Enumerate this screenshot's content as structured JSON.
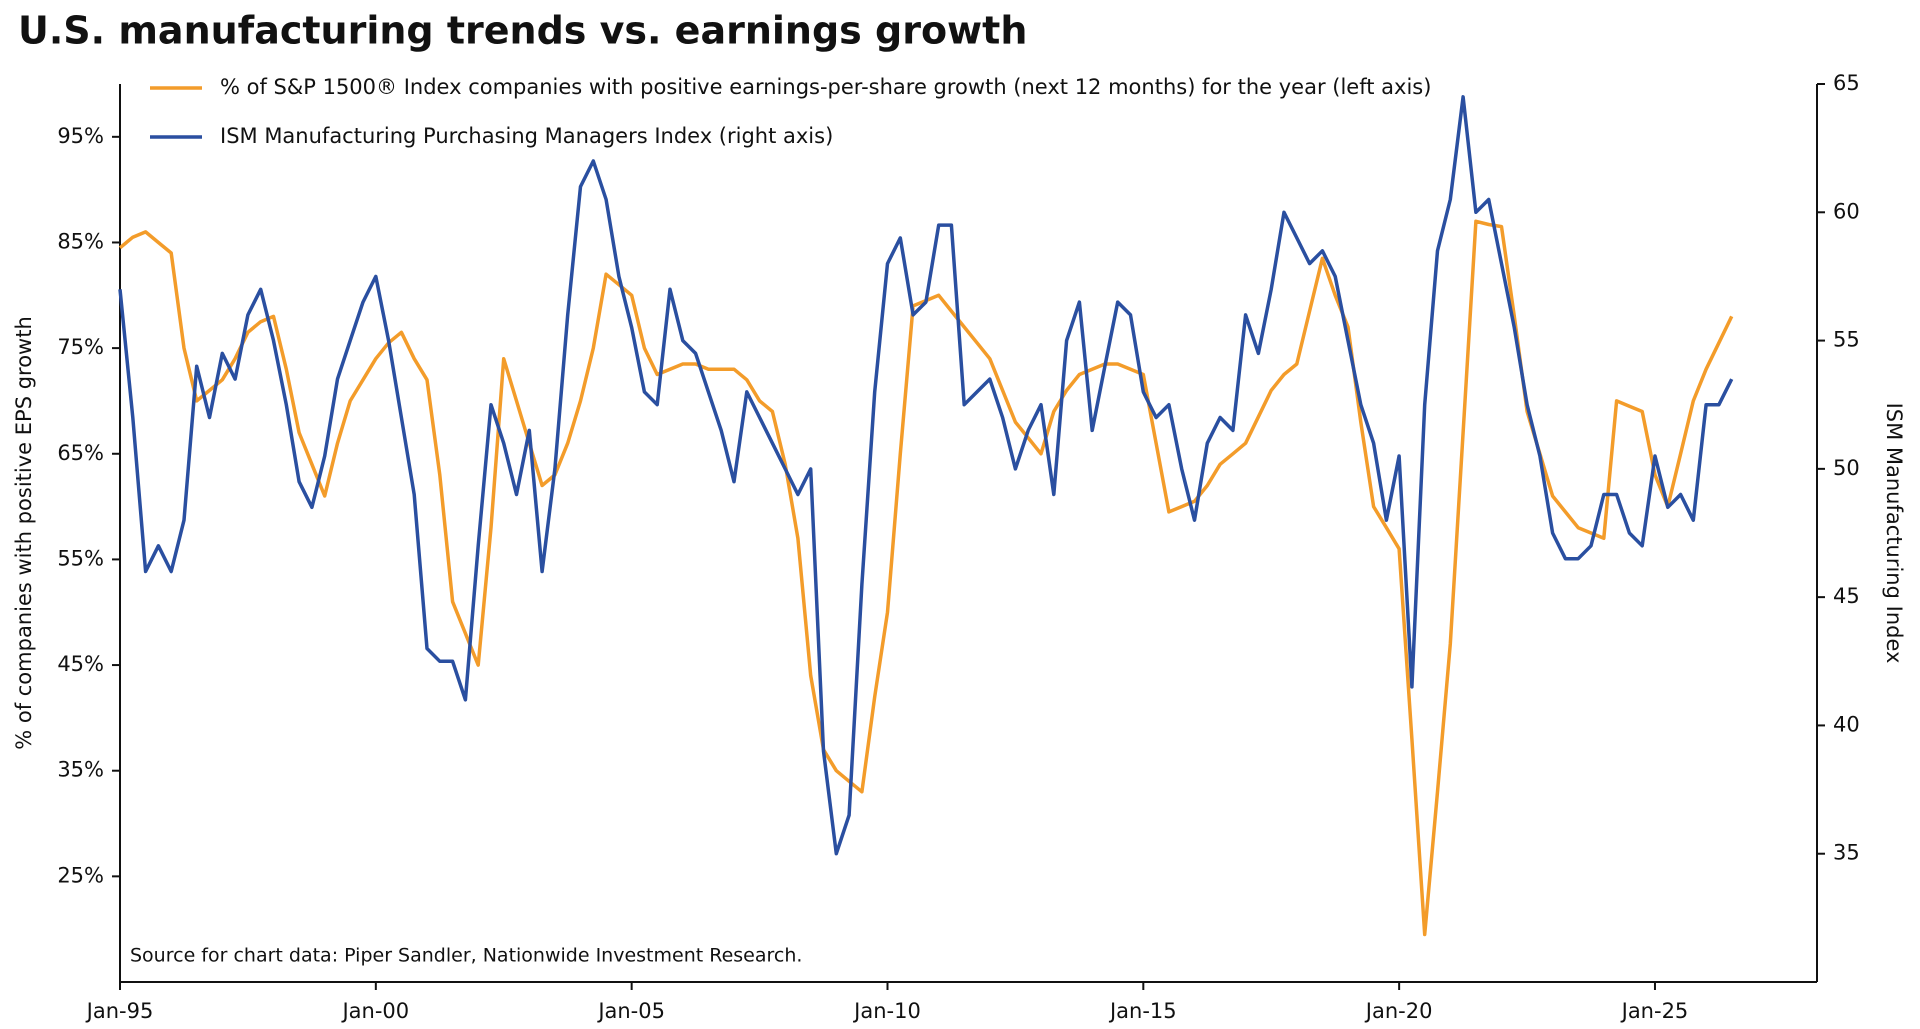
{
  "chart_data": {
    "type": "line",
    "title": "U.S. manufacturing trends vs. earnings growth",
    "ylabel": "% of companies with positive EPS growth",
    "y2label": "ISM Manufacturing Index",
    "source": "Source for chart data: Piper Sandler, Nationwide Investment Research.",
    "x": [
      "Jan-95",
      "Apr-95",
      "Jul-95",
      "Oct-95",
      "Jan-96",
      "Apr-96",
      "Jul-96",
      "Oct-96",
      "Jan-97",
      "Apr-97",
      "Jul-97",
      "Oct-97",
      "Jan-98",
      "Apr-98",
      "Jul-98",
      "Oct-98",
      "Jan-99",
      "Apr-99",
      "Jul-99",
      "Oct-99",
      "Jan-00",
      "Apr-00",
      "Jul-00",
      "Oct-00",
      "Jan-01",
      "Apr-01",
      "Jul-01",
      "Oct-01",
      "Jan-02",
      "Apr-02",
      "Jul-02",
      "Oct-02",
      "Jan-03",
      "Apr-03",
      "Jul-03",
      "Oct-03",
      "Jan-04",
      "Apr-04",
      "Jul-04",
      "Oct-04",
      "Jan-05",
      "Apr-05",
      "Jul-05",
      "Oct-05",
      "Jan-06",
      "Apr-06",
      "Jul-06",
      "Oct-06",
      "Jan-07",
      "Apr-07",
      "Jul-07",
      "Oct-07",
      "Jan-08",
      "Apr-08",
      "Jul-08",
      "Oct-08",
      "Jan-09",
      "Apr-09",
      "Jul-09",
      "Oct-09",
      "Jan-10",
      "Apr-10",
      "Jul-10",
      "Oct-10",
      "Jan-11",
      "Apr-11",
      "Jul-11",
      "Oct-11",
      "Jan-12",
      "Apr-12",
      "Jul-12",
      "Oct-12",
      "Jan-13",
      "Apr-13",
      "Jul-13",
      "Oct-13",
      "Jan-14",
      "Apr-14",
      "Jul-14",
      "Oct-14",
      "Jan-15",
      "Apr-15",
      "Jul-15",
      "Oct-15",
      "Jan-16",
      "Apr-16",
      "Jul-16",
      "Oct-16",
      "Jan-17",
      "Apr-17",
      "Jul-17",
      "Oct-17",
      "Jan-18",
      "Apr-18",
      "Jul-18",
      "Oct-18",
      "Jan-19",
      "Apr-19",
      "Jul-19",
      "Oct-19",
      "Jan-20",
      "Apr-20",
      "Jul-20",
      "Oct-20",
      "Jan-21",
      "Apr-21",
      "Jul-21",
      "Oct-21",
      "Jan-22",
      "Apr-22",
      "Jul-22",
      "Oct-22",
      "Jan-23",
      "Apr-23",
      "Jul-23",
      "Oct-23",
      "Jan-24",
      "Apr-24",
      "Jul-24",
      "Oct-24",
      "Jan-25",
      "Apr-25",
      "Jul-25",
      "Oct-25",
      "Jan-26",
      "Apr-26",
      "Jul-26"
    ],
    "series": [
      {
        "name": "% of S&P 1500® Index companies with positive earnings-per-share growth (next 12 months) for the year (left axis)",
        "color": "#f39c2a",
        "values": [
          84.5,
          85.5,
          86,
          85,
          84,
          75,
          70,
          71,
          72,
          74,
          76.5,
          77.5,
          78,
          73,
          67,
          64,
          61,
          66,
          70,
          72,
          74,
          75.5,
          76.5,
          74,
          72,
          63,
          51,
          48,
          45,
          58,
          74,
          70,
          66,
          62,
          63,
          66,
          70,
          75,
          82,
          81,
          80,
          75,
          72.5,
          73,
          73.5,
          73.5,
          73,
          73,
          73,
          72,
          70,
          69,
          64,
          57,
          44,
          37,
          35,
          34,
          33,
          42,
          50,
          65,
          79,
          79.5,
          80,
          78.5,
          77,
          75.5,
          74,
          71,
          68,
          66.5,
          65,
          69,
          71,
          72.5,
          73,
          73.5,
          73.5,
          73,
          72.5,
          66,
          59.5,
          60,
          60.5,
          62,
          64,
          65,
          66,
          68.5,
          71,
          72.5,
          73.5,
          78.5,
          83.5,
          80,
          77,
          68,
          60,
          58,
          56,
          38,
          19.5,
          33,
          47,
          67,
          87,
          86.7,
          86.5,
          78,
          69,
          65,
          61,
          59.5,
          58,
          57.5,
          57,
          70,
          69.5,
          69,
          63,
          60,
          65,
          70,
          73,
          75.5,
          78
        ]
      },
      {
        "name": "ISM Manufacturing Purchasing Managers Index (right axis)",
        "color": "#2a4fa0",
        "axis": "y2",
        "values": [
          57,
          52,
          46,
          47,
          46,
          48,
          54,
          52,
          54.5,
          53.5,
          56,
          57,
          55,
          52.5,
          49.5,
          48.5,
          50.5,
          53.5,
          55,
          56.5,
          57.5,
          55,
          52,
          49,
          43,
          42.5,
          42.5,
          41,
          47,
          52.5,
          51,
          49,
          51.5,
          46,
          50,
          56,
          61,
          62,
          60.5,
          57.5,
          55.5,
          53,
          52.5,
          57,
          55,
          54.5,
          53,
          51.5,
          49.5,
          53,
          52,
          51,
          50,
          49,
          50,
          39,
          35,
          36.5,
          45.5,
          53,
          58,
          59,
          56,
          56.5,
          59.5,
          59.5,
          52.5,
          53,
          53.5,
          52,
          50,
          51.5,
          52.5,
          49,
          55,
          56.5,
          51.5,
          54,
          56.5,
          56,
          53,
          52,
          52.5,
          50,
          48,
          51,
          52,
          51.5,
          56,
          54.5,
          57,
          60,
          59,
          58,
          58.5,
          57.5,
          55,
          52.5,
          51,
          48,
          50.5,
          41.5,
          52.5,
          58.5,
          60.5,
          64.5,
          60,
          60.5,
          58,
          55.5,
          52.5,
          50.5,
          47.5,
          46.5,
          46.5,
          47,
          49,
          49,
          47.5,
          47,
          50.5,
          48.5,
          49,
          48,
          52.5,
          52.5,
          53.5
        ]
      }
    ],
    "xlim": [
      "Jan-95",
      "Mar-28"
    ],
    "xticks": [
      "Jan-95",
      "Jan-00",
      "Jan-05",
      "Jan-10",
      "Jan-15",
      "Jan-20",
      "Jan-25"
    ],
    "ylim": [
      15,
      100
    ],
    "yticks": [
      {
        "value": 25,
        "label": "25%"
      },
      {
        "value": 35,
        "label": "35%"
      },
      {
        "value": 45,
        "label": "45%"
      },
      {
        "value": 55,
        "label": "55%"
      },
      {
        "value": 65,
        "label": "65%"
      },
      {
        "value": 75,
        "label": "75%"
      },
      {
        "value": 85,
        "label": "85%"
      },
      {
        "value": 95,
        "label": "95%"
      }
    ],
    "y2lim": [
      30,
      65
    ],
    "y2ticks": [
      35,
      40,
      45,
      50,
      55,
      60,
      65
    ],
    "legend": "top-left"
  }
}
